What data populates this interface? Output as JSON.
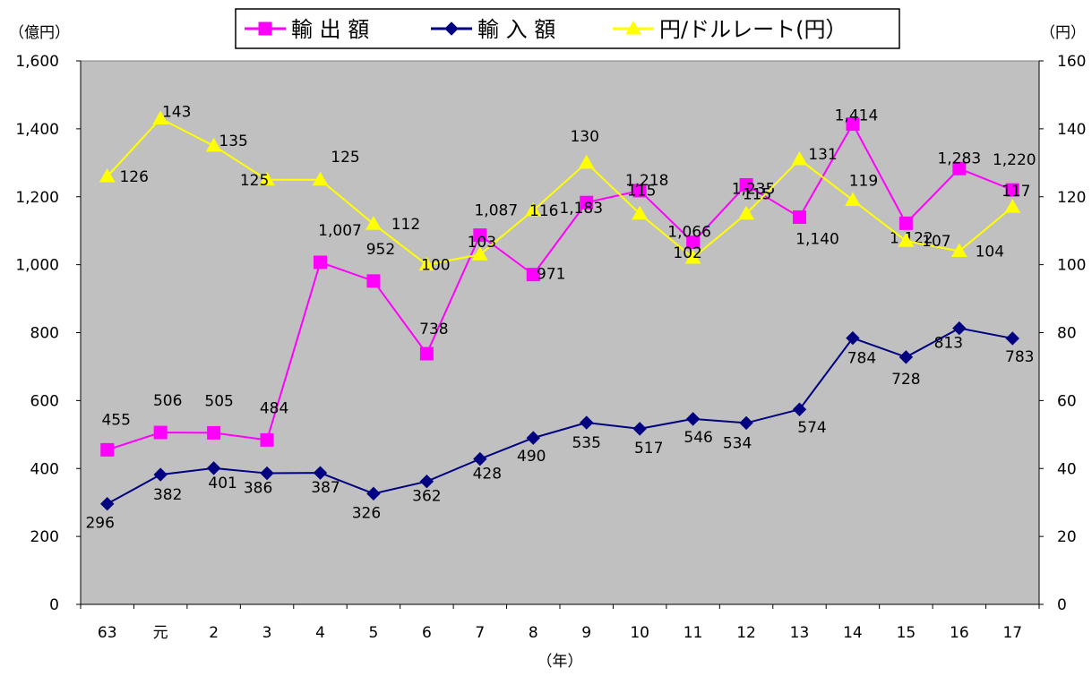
{
  "chart_data": {
    "type": "line",
    "xlabel": "（年）",
    "y_left_unit": "（億円）",
    "y_right_unit": "（円）",
    "categories": [
      "63",
      "元",
      "2",
      "3",
      "4",
      "5",
      "6",
      "7",
      "8",
      "9",
      "10",
      "11",
      "12",
      "13",
      "14",
      "15",
      "16",
      "17"
    ],
    "y_left_ticks": [
      "0",
      "200",
      "400",
      "600",
      "800",
      "1,000",
      "1,200",
      "1,400",
      "1,600"
    ],
    "y_right_ticks": [
      "0",
      "20",
      "40",
      "60",
      "80",
      "100",
      "120",
      "140",
      "160"
    ],
    "ylim_left": [
      0,
      1600
    ],
    "ylim_right": [
      0,
      160
    ],
    "grid": false,
    "plot_background": "#c0c0c0",
    "legend_position": "top-center",
    "series": [
      {
        "name": "輸 出 額",
        "axis": "left",
        "color": "#ff00ff",
        "marker": "square",
        "values": [
          455,
          506,
          505,
          484,
          1007,
          952,
          738,
          1087,
          971,
          1183,
          1218,
          1066,
          1235,
          1140,
          1414,
          1122,
          1283,
          1220
        ],
        "labels": [
          "455",
          "506",
          "505",
          "484",
          "1,007",
          "952",
          "738",
          "1,087",
          "971",
          "1,183",
          "1,218",
          "1,066",
          "1,235",
          "1,140",
          "1,414",
          "1,122",
          "1,283",
          "1,220"
        ]
      },
      {
        "name": "輸 入 額",
        "axis": "left",
        "color": "#000080",
        "marker": "diamond",
        "values": [
          296,
          382,
          401,
          386,
          387,
          326,
          362,
          428,
          490,
          535,
          517,
          546,
          534,
          574,
          784,
          728,
          813,
          783
        ],
        "labels": [
          "296",
          "382",
          "401",
          "386",
          "387",
          "326",
          "362",
          "428",
          "490",
          "535",
          "517",
          "546",
          "534",
          "574",
          "784",
          "728",
          "813",
          "783"
        ]
      },
      {
        "name": "円/ドルレート(円）",
        "axis": "right",
        "color": "#ffff00",
        "marker": "triangle",
        "values": [
          126,
          143,
          135,
          125,
          125,
          112,
          100,
          103,
          116,
          130,
          115,
          102,
          115,
          131,
          119,
          107,
          104,
          117
        ],
        "labels": [
          "126",
          "143",
          "135",
          "125",
          "125",
          "112",
          "100",
          "103",
          "116",
          "130",
          "115",
          "102",
          "115",
          "131",
          "119",
          "107",
          "104",
          "117"
        ]
      }
    ]
  }
}
